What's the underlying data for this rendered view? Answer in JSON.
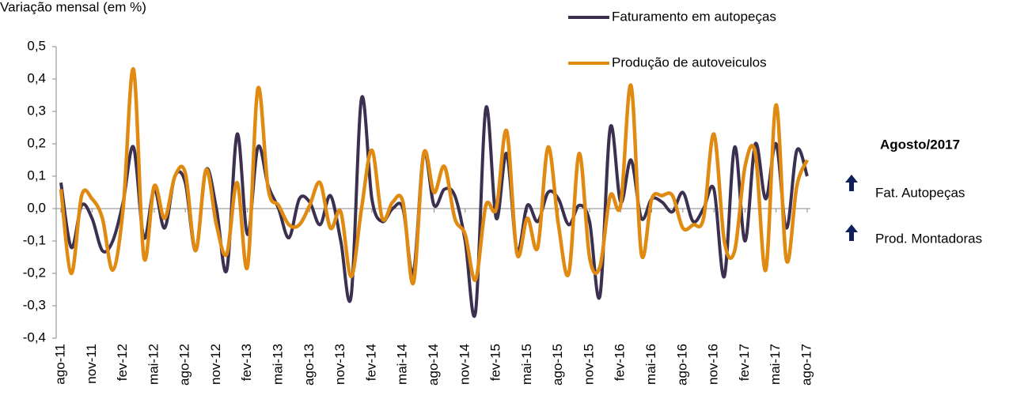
{
  "chart_data": {
    "type": "line",
    "title": "Variação mensal (em %)",
    "categories": [
      "ago-11",
      null,
      null,
      "nov-11",
      null,
      null,
      "fev-12",
      null,
      null,
      "mai-12",
      null,
      null,
      "ago-12",
      null,
      null,
      "nov-12",
      null,
      null,
      "fev-13",
      null,
      null,
      "mai-13",
      null,
      null,
      "ago-13",
      null,
      null,
      "nov-13",
      null,
      null,
      "fev-14",
      null,
      null,
      "mai-14",
      null,
      null,
      "ago-14",
      null,
      null,
      "nov-14",
      null,
      null,
      "fev-15",
      null,
      null,
      "mai-15",
      null,
      null,
      "ago-15",
      null,
      null,
      "nov-15",
      null,
      null,
      "fev-16",
      null,
      null,
      "mai-16",
      null,
      null,
      "ago-16",
      null,
      null,
      "nov-16",
      null,
      null,
      "fev-17",
      null,
      null,
      "mai-17",
      null,
      null,
      "ago-17"
    ],
    "series": [
      {
        "name": "Faturamento em autopeças",
        "color": "#3b3050",
        "values": [
          0.08,
          -0.12,
          0.01,
          -0.03,
          -0.13,
          -0.1,
          0.02,
          0.19,
          -0.09,
          0.06,
          -0.06,
          0.1,
          0.08,
          -0.13,
          0.12,
          0.0,
          -0.19,
          0.23,
          -0.08,
          0.19,
          0.07,
          0.0,
          -0.09,
          0.03,
          0.02,
          -0.05,
          0.04,
          -0.1,
          -0.27,
          0.34,
          0.03,
          -0.04,
          0.0,
          0.0,
          -0.2,
          0.17,
          0.01,
          0.06,
          0.04,
          -0.1,
          -0.32,
          0.31,
          -0.03,
          0.17,
          -0.13,
          0.01,
          -0.04,
          0.05,
          0.03,
          -0.05,
          0.01,
          -0.04,
          -0.27,
          0.25,
          0.02,
          0.15,
          -0.03,
          0.03,
          0.02,
          -0.01,
          0.05,
          -0.04,
          0.0,
          0.06,
          -0.21,
          0.19,
          -0.1,
          0.2,
          0.03,
          0.2,
          -0.06,
          0.18,
          0.1
        ]
      },
      {
        "name": "Produção de autoveiculos",
        "color": "#e08a12",
        "values": [
          0.06,
          -0.2,
          0.04,
          0.03,
          -0.03,
          -0.19,
          0.0,
          0.43,
          -0.15,
          0.07,
          -0.03,
          0.1,
          0.11,
          -0.13,
          0.12,
          -0.05,
          -0.14,
          0.08,
          -0.18,
          0.37,
          0.06,
          0.01,
          -0.05,
          -0.05,
          0.01,
          0.08,
          -0.06,
          -0.01,
          -0.21,
          0.0,
          0.18,
          -0.03,
          0.02,
          0.02,
          -0.23,
          0.17,
          0.05,
          0.13,
          -0.03,
          -0.08,
          -0.22,
          0.01,
          0.0,
          0.24,
          -0.14,
          -0.03,
          -0.12,
          0.19,
          -0.05,
          -0.2,
          0.17,
          -0.15,
          -0.18,
          0.04,
          0.01,
          0.38,
          -0.14,
          0.03,
          0.04,
          0.04,
          -0.06,
          -0.05,
          -0.03,
          0.23,
          -0.1,
          -0.13,
          0.13,
          0.17,
          -0.19,
          0.32,
          -0.16,
          0.07,
          0.15
        ]
      }
    ],
    "ylim": [
      -0.4,
      0.5
    ],
    "yticks": [
      {
        "value": -0.4,
        "label": "-0,4"
      },
      {
        "value": -0.3,
        "label": "-0,3"
      },
      {
        "value": -0.2,
        "label": "-0,2"
      },
      {
        "value": -0.1,
        "label": "-0,1"
      },
      {
        "value": 0,
        "label": "0,0"
      },
      {
        "value": 0.1,
        "label": "0,1"
      },
      {
        "value": 0.2,
        "label": "0,2"
      },
      {
        "value": 0.3,
        "label": "0,3"
      },
      {
        "value": 0.4,
        "label": "0,4"
      },
      {
        "value": 0.5,
        "label": "0,5"
      }
    ],
    "grid": false,
    "legend": "top-right"
  },
  "side_panel": {
    "title": "Agosto/2017",
    "items": [
      "Fat. Autopeças",
      "Prod. Montadoras"
    ]
  }
}
